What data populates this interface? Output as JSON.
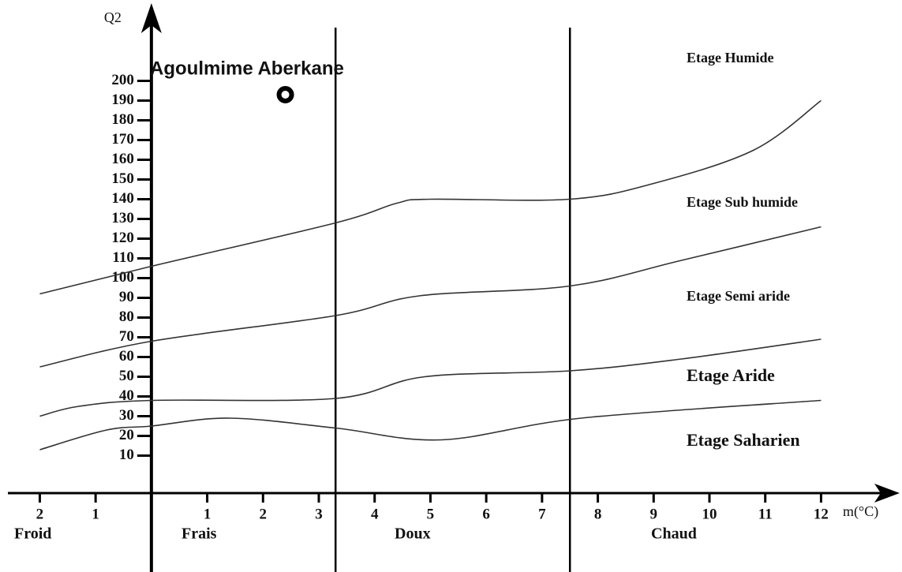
{
  "chart_data": {
    "type": "line",
    "y_label": "Q2",
    "x_label": "m(°C)",
    "xlim": [
      -2.6,
      12.8
    ],
    "ylim": [
      -9,
      233
    ],
    "xticks": [
      {
        "value": -2,
        "label": "2"
      },
      {
        "value": -1,
        "label": "1"
      },
      1,
      2,
      3,
      4,
      5,
      6,
      7,
      8,
      9,
      10,
      11,
      12
    ],
    "yticks": [
      10,
      20,
      30,
      40,
      50,
      60,
      70,
      80,
      90,
      100,
      110,
      120,
      130,
      140,
      150,
      160,
      170,
      180,
      190,
      200
    ],
    "color": "#333333",
    "series": [
      {
        "x": [
          -2,
          0,
          3.3,
          4.4,
          5,
          7.5,
          9,
          10.8,
          12
        ],
        "values": [
          92,
          106,
          128,
          138,
          140,
          140,
          148,
          165,
          190
        ]
      },
      {
        "x": [
          -2,
          0,
          3.3,
          4.8,
          7.5,
          9.5,
          12
        ],
        "values": [
          55,
          68,
          81,
          91,
          96,
          109,
          126
        ]
      },
      {
        "x": [
          -2,
          -1.3,
          0,
          3.3,
          4.9,
          7.5,
          9.5,
          12
        ],
        "values": [
          30,
          35,
          38,
          39,
          50,
          53,
          59,
          69
        ]
      },
      {
        "x": [
          -2,
          -0.8,
          0,
          1.4,
          3.3,
          5.2,
          7.7,
          12
        ],
        "values": [
          13,
          23,
          25,
          29,
          24,
          18,
          29,
          38
        ]
      }
    ],
    "vlines": [
      3.3,
      7.5
    ],
    "point": {
      "name": "Agoulmime Aberkane",
      "x": 2.4,
      "value": 193
    },
    "zones": [
      "Etage Humide",
      "Etage Sub humide",
      "Etage Semi aride",
      "Etage Aride",
      "Etage Saharien"
    ],
    "regions": [
      "Froid",
      "Frais",
      "Doux",
      "Chaud"
    ]
  }
}
